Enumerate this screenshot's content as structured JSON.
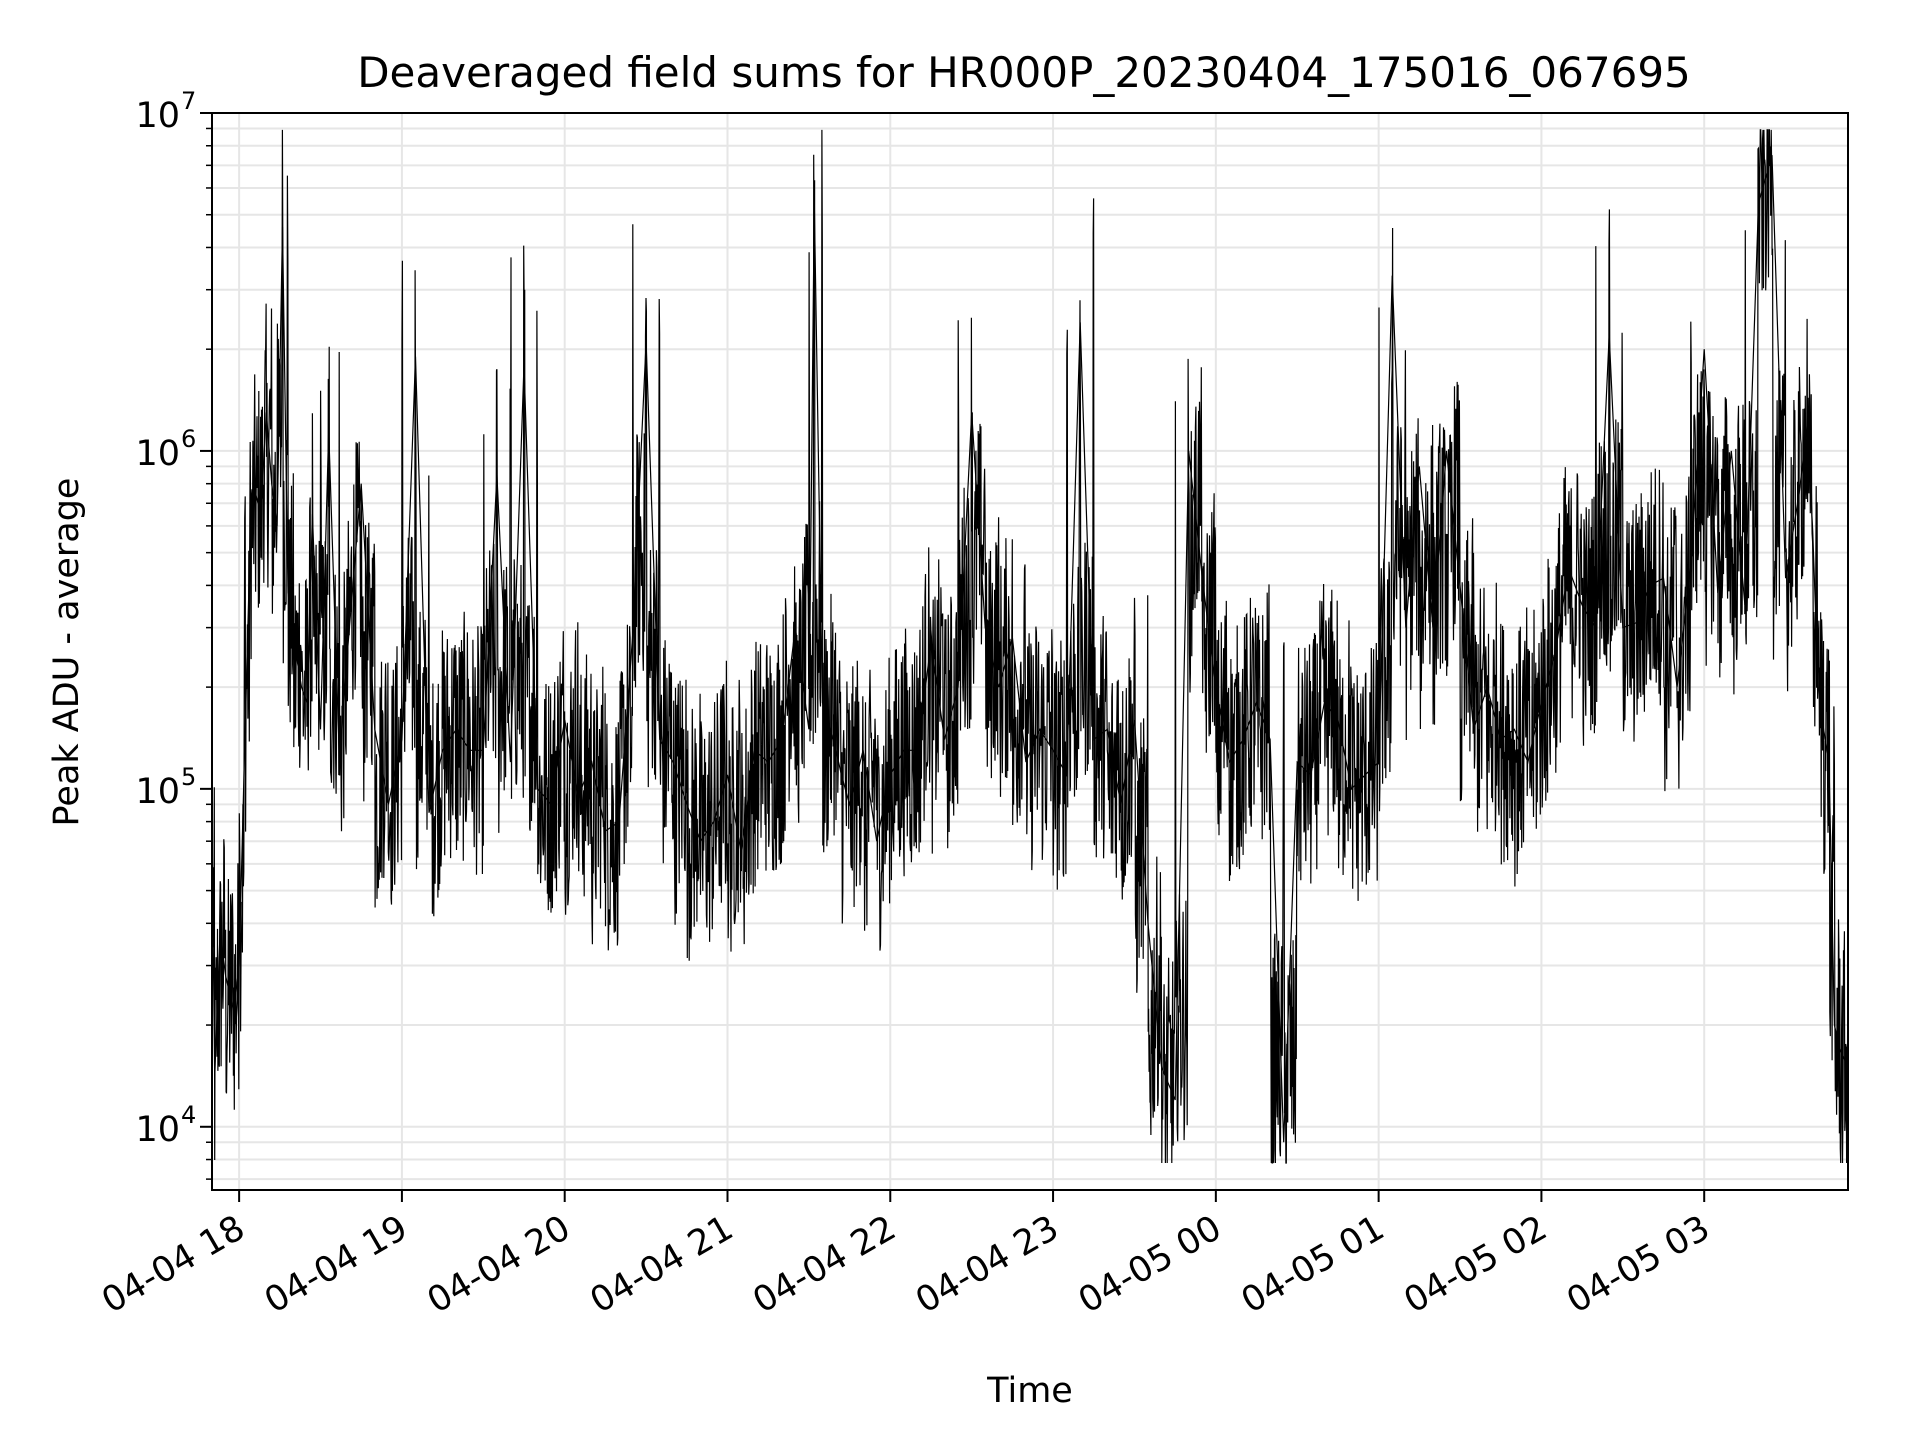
{
  "chart_data": {
    "type": "line",
    "title": "Deaveraged field sums for HR000P_20230404_175016_067695",
    "xlabel": "Time",
    "ylabel": "Peak ADU - average",
    "yscale": "log",
    "ylim": [
      6500,
      10000000
    ],
    "xlim": [
      "2023-04-04 17:50",
      "2023-04-05 03:53"
    ],
    "grid": true,
    "line_color": "#000000",
    "grid_color": "#e6e6e6",
    "x_ticks": [
      {
        "label": "04-04 18",
        "time": "2023-04-04 18:00"
      },
      {
        "label": "04-04 19",
        "time": "2023-04-04 19:00"
      },
      {
        "label": "04-04 20",
        "time": "2023-04-04 20:00"
      },
      {
        "label": "04-04 21",
        "time": "2023-04-04 21:00"
      },
      {
        "label": "04-04 22",
        "time": "2023-04-04 22:00"
      },
      {
        "label": "04-04 23",
        "time": "2023-04-04 23:00"
      },
      {
        "label": "04-05 00",
        "time": "2023-04-05 00:00"
      },
      {
        "label": "04-05 01",
        "time": "2023-04-05 01:00"
      },
      {
        "label": "04-05 02",
        "time": "2023-04-05 02:00"
      },
      {
        "label": "04-05 03",
        "time": "2023-04-05 03:00"
      }
    ],
    "y_ticks": [
      {
        "base": "10",
        "exp": "4",
        "value": 10000
      },
      {
        "base": "10",
        "exp": "5",
        "value": 100000
      },
      {
        "base": "10",
        "exp": "6",
        "value": 1000000
      },
      {
        "base": "10",
        "exp": "7",
        "value": 10000000
      }
    ],
    "series": [
      {
        "x": [
          "2023-04-04 17:50",
          "2023-04-04 17:51",
          "2023-04-04 17:53",
          "2023-04-04 17:55",
          "2023-04-04 17:58",
          "2023-04-04 18:00",
          "2023-04-04 18:02",
          "2023-04-04 18:04",
          "2023-04-04 18:06",
          "2023-04-04 18:08",
          "2023-04-04 18:10",
          "2023-04-04 18:12",
          "2023-04-04 18:14",
          "2023-04-04 18:16",
          "2023-04-04 18:18",
          "2023-04-04 18:20",
          "2023-04-04 18:23",
          "2023-04-04 18:25",
          "2023-04-04 18:27",
          "2023-04-04 18:30",
          "2023-04-04 18:33",
          "2023-04-04 18:37",
          "2023-04-04 18:40",
          "2023-04-04 18:45",
          "2023-04-04 18:50",
          "2023-04-04 18:55",
          "2023-04-04 19:00",
          "2023-04-04 19:05",
          "2023-04-04 19:10",
          "2023-04-04 19:15",
          "2023-04-04 19:20",
          "2023-04-04 19:25",
          "2023-04-04 19:30",
          "2023-04-04 19:35",
          "2023-04-04 19:40",
          "2023-04-04 19:45",
          "2023-04-04 19:50",
          "2023-04-04 19:55",
          "2023-04-04 20:00",
          "2023-04-04 20:05",
          "2023-04-04 20:10",
          "2023-04-04 20:15",
          "2023-04-04 20:20",
          "2023-04-04 20:25",
          "2023-04-04 20:30",
          "2023-04-04 20:35",
          "2023-04-04 20:40",
          "2023-04-04 20:45",
          "2023-04-04 20:50",
          "2023-04-04 20:55",
          "2023-04-04 21:00",
          "2023-04-04 21:05",
          "2023-04-04 21:10",
          "2023-04-04 21:15",
          "2023-04-04 21:20",
          "2023-04-04 21:25",
          "2023-04-04 21:30",
          "2023-04-04 21:32",
          "2023-04-04 21:35",
          "2023-04-04 21:40",
          "2023-04-04 21:42",
          "2023-04-04 21:45",
          "2023-04-04 21:50",
          "2023-04-04 21:55",
          "2023-04-04 22:00",
          "2023-04-04 22:05",
          "2023-04-04 22:10",
          "2023-04-04 22:15",
          "2023-04-04 22:20",
          "2023-04-04 22:25",
          "2023-04-04 22:30",
          "2023-04-04 22:35",
          "2023-04-04 22:40",
          "2023-04-04 22:45",
          "2023-04-04 22:50",
          "2023-04-04 22:55",
          "2023-04-04 23:00",
          "2023-04-04 23:05",
          "2023-04-04 23:10",
          "2023-04-04 23:15",
          "2023-04-04 23:20",
          "2023-04-04 23:25",
          "2023-04-04 23:30",
          "2023-04-04 23:35",
          "2023-04-04 23:40",
          "2023-04-04 23:45",
          "2023-04-04 23:50",
          "2023-04-04 23:55",
          "2023-04-05 00:00",
          "2023-04-05 00:05",
          "2023-04-05 00:10",
          "2023-04-05 00:15",
          "2023-04-05 00:20",
          "2023-04-05 00:25",
          "2023-04-05 00:30",
          "2023-04-05 00:35",
          "2023-04-05 00:40",
          "2023-04-05 00:45",
          "2023-04-05 00:50",
          "2023-04-05 00:55",
          "2023-04-05 01:00",
          "2023-04-05 01:05",
          "2023-04-05 01:10",
          "2023-04-05 01:15",
          "2023-04-05 01:20",
          "2023-04-05 01:25",
          "2023-04-05 01:30",
          "2023-04-05 01:35",
          "2023-04-05 01:40",
          "2023-04-05 01:45",
          "2023-04-05 01:50",
          "2023-04-05 01:55",
          "2023-04-05 02:00",
          "2023-04-05 02:05",
          "2023-04-05 02:10",
          "2023-04-05 02:15",
          "2023-04-05 02:20",
          "2023-04-05 02:25",
          "2023-04-05 02:30",
          "2023-04-05 02:35",
          "2023-04-05 02:40",
          "2023-04-05 02:45",
          "2023-04-05 02:50",
          "2023-04-05 02:55",
          "2023-04-05 03:00",
          "2023-04-05 03:05",
          "2023-04-05 03:10",
          "2023-04-05 03:15",
          "2023-04-05 03:20",
          "2023-04-05 03:25",
          "2023-04-05 03:30",
          "2023-04-05 03:35",
          "2023-04-05 03:38",
          "2023-04-05 03:40",
          "2023-04-05 03:42",
          "2023-04-05 03:44",
          "2023-04-05 03:46",
          "2023-04-05 03:48",
          "2023-04-05 03:50",
          "2023-04-05 03:53"
        ],
        "y": [
          75000,
          14000,
          38000,
          28000,
          22000,
          30000,
          130000,
          520000,
          750000,
          650000,
          1300000,
          800000,
          600000,
          4600000,
          380000,
          280000,
          200000,
          180000,
          650000,
          150000,
          1150000,
          120000,
          260000,
          800000,
          150000,
          90000,
          140000,
          1900000,
          85000,
          130000,
          150000,
          130000,
          130000,
          850000,
          120000,
          1800000,
          100000,
          90000,
          160000,
          95000,
          120000,
          75000,
          80000,
          280000,
          2100000,
          140000,
          120000,
          90000,
          70000,
          80000,
          110000,
          65000,
          130000,
          120000,
          140000,
          300000,
          150000,
          5400000,
          180000,
          130000,
          110000,
          90000,
          130000,
          70000,
          110000,
          130000,
          130000,
          270000,
          140000,
          200000,
          1300000,
          300000,
          200000,
          280000,
          120000,
          150000,
          130000,
          110000,
          2400000,
          140000,
          150000,
          90000,
          160000,
          40000,
          15000,
          12000,
          1000000,
          420000,
          200000,
          120000,
          140000,
          180000,
          140000,
          9000,
          120000,
          110000,
          180000,
          160000,
          100000,
          110000,
          120000,
          3300000,
          300000,
          900000,
          300000,
          1000000,
          400000,
          150000,
          200000,
          140000,
          150000,
          120000,
          180000,
          250000,
          450000,
          350000,
          300000,
          2200000,
          300000,
          310000,
          400000,
          420000,
          200000,
          450000,
          2000000,
          380000,
          1000000,
          350000,
          5400000,
          7500000,
          420000,
          750000,
          1200000,
          580000,
          200000,
          150000,
          120000,
          20000,
          17000,
          15000
        ],
        "smoothing_note": ""
      }
    ]
  }
}
